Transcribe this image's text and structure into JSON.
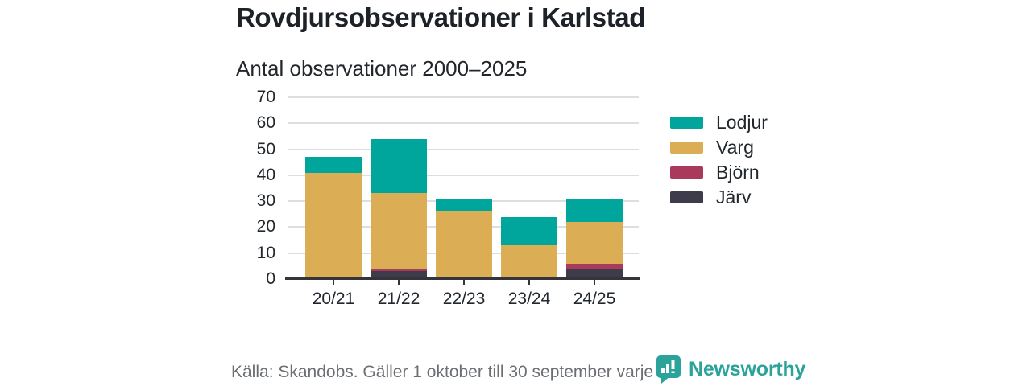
{
  "page": {
    "title": "Rovdjursobservationer i Karlstad",
    "subtitle": "Antal observationer 2000–2025",
    "footer": {
      "source": "Källa: Skandobs. Gäller 1 oktober till 30 september varje år.",
      "brand": "Newsworthy"
    }
  },
  "colors": {
    "lodjur_teal": "#00a69b",
    "varg_gold": "#dbae56",
    "bjorn_crimson": "#aa3a5b",
    "jarv_charcoal": "#3e3b4b",
    "brand_teal": "#2ba39a",
    "axis": "#34353b",
    "gridline": "#dedede",
    "text_dark": "#21272c",
    "text_muted": "#6b6f73"
  },
  "chart_data": {
    "type": "bar",
    "stacked": true,
    "title": "Rovdjursobservationer i Karlstad",
    "subtitle": "Antal observationer 2000–2025",
    "categories": [
      "20/21",
      "21/22",
      "22/23",
      "23/24",
      "24/25"
    ],
    "series": [
      {
        "name": "Järv",
        "color": "#3e3b4b",
        "values": [
          1,
          3,
          0,
          0,
          4
        ]
      },
      {
        "name": "Björn",
        "color": "#aa3a5b",
        "values": [
          0,
          1,
          1,
          0,
          2
        ]
      },
      {
        "name": "Varg",
        "color": "#dbae56",
        "values": [
          40,
          29,
          25,
          13,
          16
        ]
      },
      {
        "name": "Lodjur",
        "color": "#00a69b",
        "values": [
          6,
          21,
          5,
          11,
          9
        ]
      }
    ],
    "totals": [
      47,
      54,
      31,
      24,
      31
    ],
    "ylabel": "",
    "xlabel": "",
    "ylim": [
      0,
      70
    ],
    "yticks": [
      0,
      10,
      20,
      30,
      40,
      50,
      60,
      70
    ],
    "grid": true,
    "legend_position": "right",
    "legend_order": [
      "Lodjur",
      "Varg",
      "Björn",
      "Järv"
    ]
  }
}
